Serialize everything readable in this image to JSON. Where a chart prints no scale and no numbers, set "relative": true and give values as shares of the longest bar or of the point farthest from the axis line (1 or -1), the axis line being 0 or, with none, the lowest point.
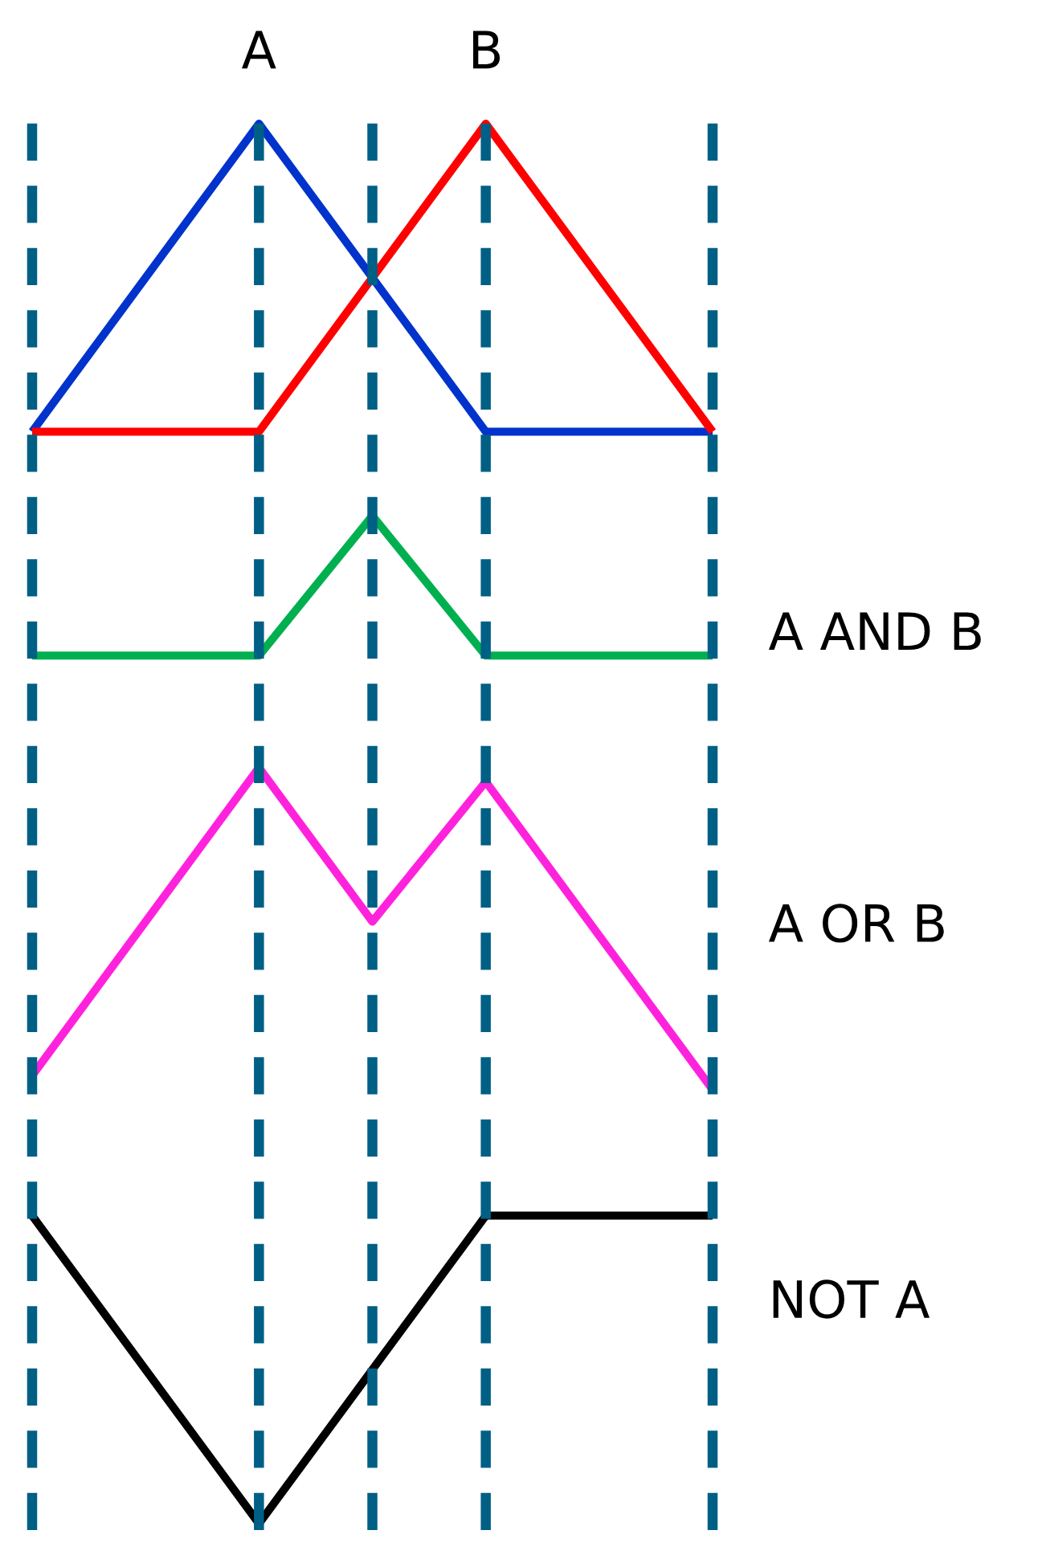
{
  "chart_data": {
    "type": "line",
    "relative": true,
    "grid": "x",
    "categories": [
      null,
      null,
      null,
      null,
      null,
      null,
      null
    ],
    "series": [
      {
        "name": "A",
        "color": "#0033cc",
        "values": [
          0.78,
          0.89,
          1,
          0.89,
          0.78,
          0.78,
          0.78
        ]
      },
      {
        "name": "B",
        "color": "#ff0000",
        "values": [
          0.78,
          0.78,
          0.78,
          0.89,
          1,
          0.89,
          0.78
        ]
      },
      {
        "name": "A AND B",
        "color": "#00b050",
        "values": [
          0.62,
          0.62,
          0.62,
          0.72,
          0.62,
          0.62,
          0.62
        ]
      },
      {
        "name": "A OR B",
        "color": "#ff22dd",
        "values": [
          0.32,
          0.43,
          0.54,
          0.43,
          0.53,
          0.42,
          0.31
        ]
      },
      {
        "name": "NOT A",
        "color": "#000000",
        "values": [
          0.22,
          0.11,
          0,
          0.11,
          0.22,
          0.22,
          0.22
        ]
      }
    ]
  }
}
